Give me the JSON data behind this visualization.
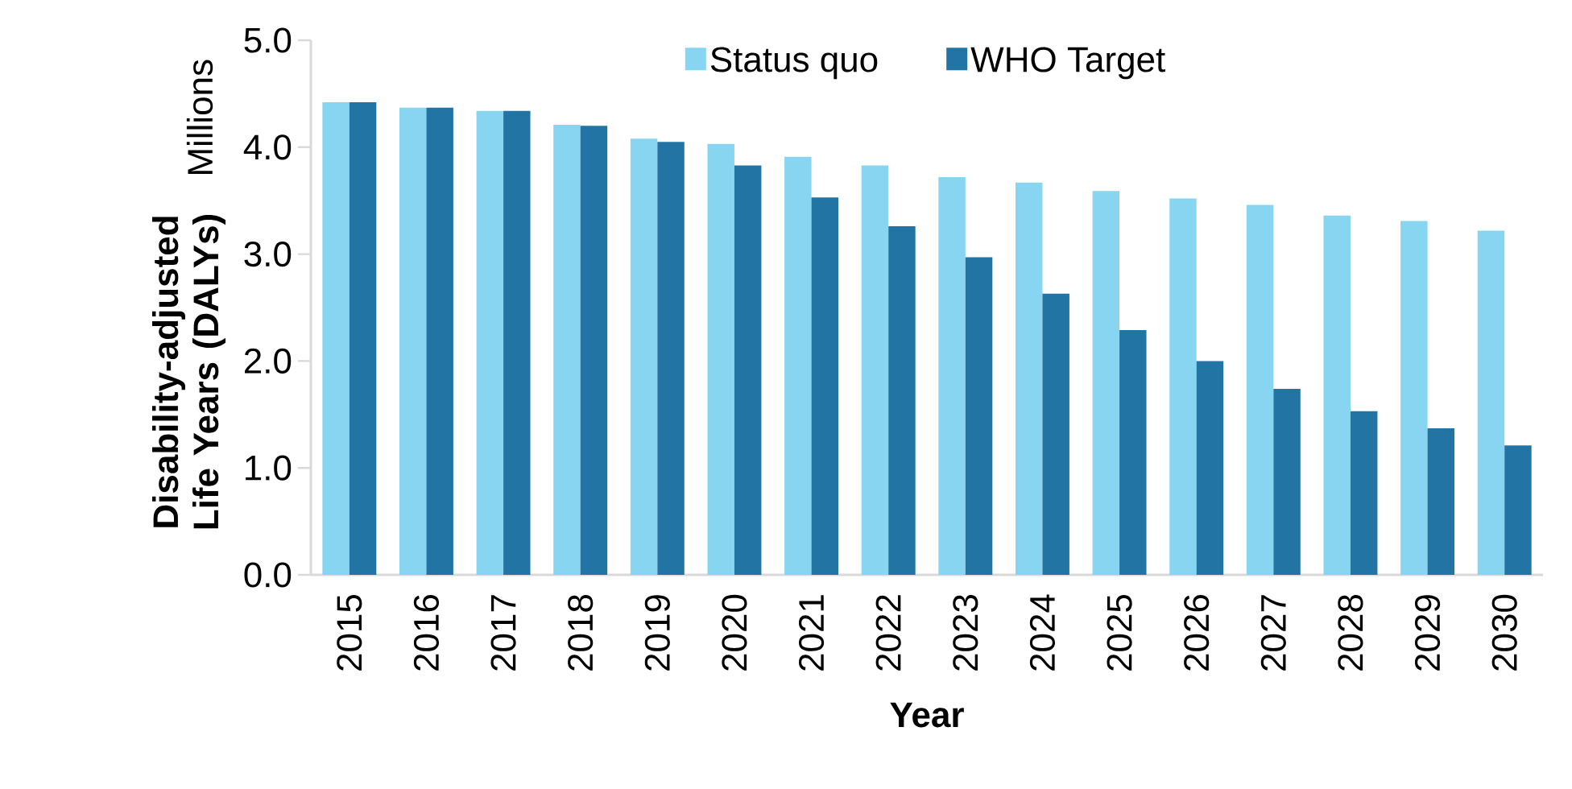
{
  "chart_data": {
    "type": "bar",
    "categories": [
      "2015",
      "2016",
      "2017",
      "2018",
      "2019",
      "2020",
      "2021",
      "2022",
      "2023",
      "2024",
      "2025",
      "2026",
      "2027",
      "2028",
      "2029",
      "2030"
    ],
    "series": [
      {
        "name": "Status quo",
        "color": "#87d5f0",
        "values": [
          4.42,
          4.37,
          4.34,
          4.21,
          4.08,
          4.03,
          3.91,
          3.83,
          3.72,
          3.67,
          3.59,
          3.52,
          3.46,
          3.36,
          3.31,
          3.22
        ]
      },
      {
        "name": "WHO Target",
        "color": "#2274a5",
        "values": [
          4.42,
          4.37,
          4.34,
          4.2,
          4.05,
          3.83,
          3.53,
          3.26,
          2.97,
          2.63,
          2.29,
          2.0,
          1.74,
          1.53,
          1.37,
          1.21
        ]
      }
    ],
    "xlabel": "Year",
    "ylabel": "Disability-adjusted Life Years (DALYs)",
    "annotations": [
      "Millions"
    ],
    "ylim": [
      0,
      5
    ],
    "yticks": [
      {
        "value": 0,
        "label": "0.0"
      },
      {
        "value": 1,
        "label": "1.0"
      },
      {
        "value": 2,
        "label": "2.0"
      },
      {
        "value": 3,
        "label": "3.0"
      },
      {
        "value": 4,
        "label": "4.0"
      },
      {
        "value": 5,
        "label": "5.0"
      }
    ],
    "legend": "top",
    "grid": false
  }
}
